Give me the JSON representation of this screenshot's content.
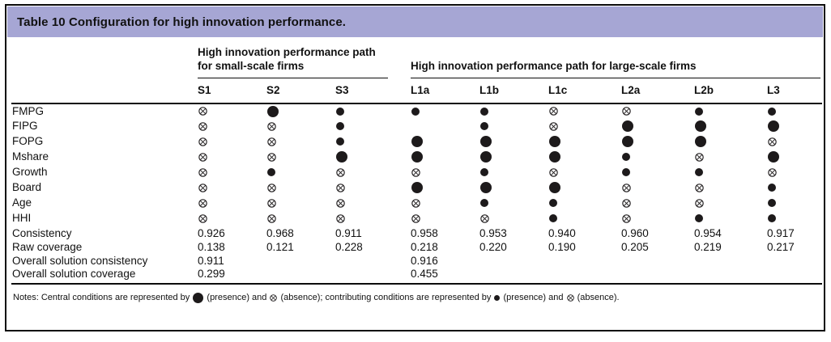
{
  "colors": {
    "header_bg": "#a6a6d4",
    "border": "#0c0c0c",
    "symbol": "#1d1a1b"
  },
  "title": "Table 10 Configuration for high innovation performance.",
  "groups": [
    {
      "label": "High innovation performance path for small-scale firms",
      "span": 3
    },
    {
      "label": "High innovation performance path for large-scale firms",
      "span": 6
    }
  ],
  "columns": [
    "S1",
    "S2",
    "S3",
    "L1a",
    "L1b",
    "L1c",
    "L2a",
    "L2b",
    "L3"
  ],
  "symbols": {
    "cp": {
      "name": "central-presence-icon",
      "shape": "circle",
      "size": 14,
      "meaning": "central condition (presence)"
    },
    "p": {
      "name": "contributing-presence-icon",
      "shape": "circle",
      "size": 10,
      "meaning": "contributing condition (presence)"
    },
    "a": {
      "name": "contributing-absence-icon",
      "shape": "otimes",
      "size": 11,
      "meaning": "condition absence"
    },
    "ca": {
      "name": "central-absence-icon",
      "shape": "otimes",
      "size": 11,
      "meaning": "central condition (absence)"
    }
  },
  "condition_rows": [
    {
      "label": "FMPG",
      "cells": [
        "a",
        "cp",
        "p",
        "p",
        "p",
        "a",
        "a",
        "p",
        "p"
      ]
    },
    {
      "label": "FIPG",
      "cells": [
        "a",
        "a",
        "p",
        "",
        "p",
        "a",
        "cp",
        "cp",
        "cp"
      ]
    },
    {
      "label": "FOPG",
      "cells": [
        "a",
        "a",
        "p",
        "cp",
        "cp",
        "cp",
        "cp",
        "cp",
        "a"
      ]
    },
    {
      "label": "Mshare",
      "cells": [
        "a",
        "a",
        "cp",
        "cp",
        "cp",
        "cp",
        "p",
        "a",
        "cp"
      ]
    },
    {
      "label": "Growth",
      "cells": [
        "a",
        "p",
        "a",
        "a",
        "p",
        "a",
        "p",
        "p",
        "a"
      ]
    },
    {
      "label": "Board",
      "cells": [
        "a",
        "a",
        "a",
        "cp",
        "cp",
        "cp",
        "a",
        "a",
        "p"
      ]
    },
    {
      "label": "Age",
      "cells": [
        "a",
        "a",
        "a",
        "a",
        "p",
        "p",
        "a",
        "a",
        "p"
      ]
    },
    {
      "label": "HHI",
      "cells": [
        "a",
        "a",
        "a",
        "a",
        "a",
        "p",
        "a",
        "p",
        "p"
      ]
    }
  ],
  "stat_rows": [
    {
      "label": "Consistency",
      "values": [
        "0.926",
        "0.968",
        "0.911",
        "0.958",
        "0.953",
        "0.940",
        "0.960",
        "0.954",
        "0.917"
      ]
    },
    {
      "label": "Raw coverage",
      "values": [
        "0.138",
        "0.121",
        "0.228",
        "0.218",
        "0.220",
        "0.190",
        "0.205",
        "0.219",
        "0.217"
      ]
    },
    {
      "label": "Overall solution consistency",
      "values": [
        "0.911",
        "",
        "",
        "0.916",
        "",
        "",
        "",
        "",
        ""
      ]
    },
    {
      "label": "Overall solution coverage",
      "values": [
        "0.299",
        "",
        "",
        "0.455",
        "",
        "",
        "",
        "",
        ""
      ]
    }
  ],
  "notes": {
    "segments": [
      {
        "type": "text",
        "value": "Notes: Central conditions are represented by "
      },
      {
        "type": "symbol",
        "value": "cp"
      },
      {
        "type": "text",
        "value": " (presence) and "
      },
      {
        "type": "symbol",
        "value": "ca"
      },
      {
        "type": "text",
        "value": " (absence); contributing conditions are represented by "
      },
      {
        "type": "symbol",
        "value": "p"
      },
      {
        "type": "text",
        "value": " (presence) and "
      },
      {
        "type": "symbol",
        "value": "a"
      },
      {
        "type": "text",
        "value": " (absence)."
      }
    ]
  }
}
